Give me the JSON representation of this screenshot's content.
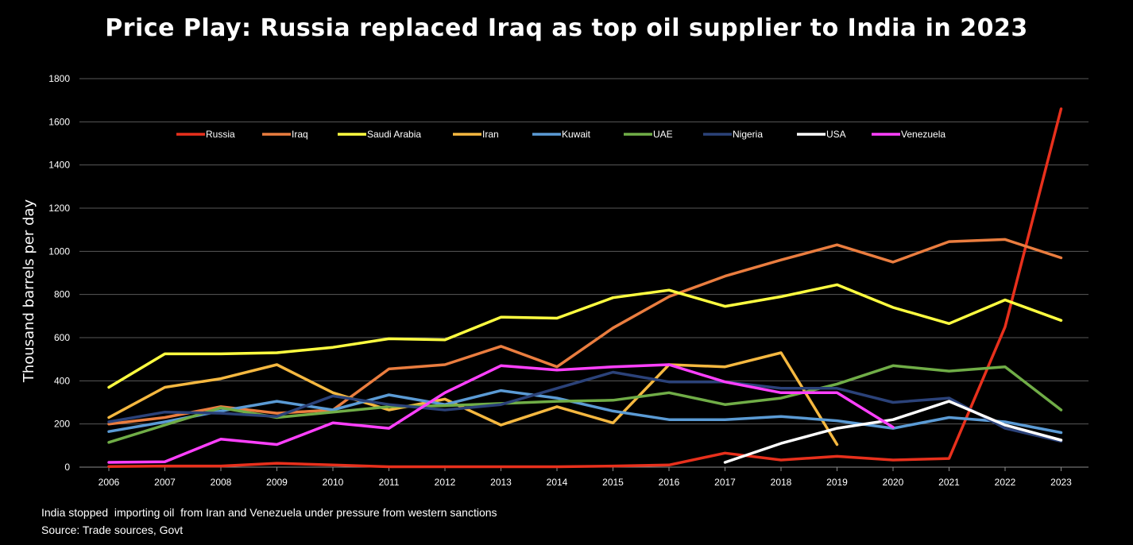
{
  "chart_data": {
    "type": "line",
    "title": "Price Play: Russia replaced Iraq as top oil supplier to India in 2023",
    "xlabel": "",
    "ylabel": "Thousand barrels per day",
    "ylim": [
      0,
      1800
    ],
    "yticks": [
      0,
      200,
      400,
      600,
      800,
      1000,
      1200,
      1400,
      1600,
      1800
    ],
    "grid": true,
    "legend_position": "top",
    "categories": [
      "2006",
      "2007",
      "2008",
      "2009",
      "2010",
      "2011",
      "2012",
      "2013",
      "2014",
      "2015",
      "2016",
      "2017",
      "2018",
      "2019",
      "2020",
      "2021",
      "2022",
      "2023"
    ],
    "series": [
      {
        "name": "Russia",
        "color": "#e8301c",
        "values": [
          3,
          5,
          5,
          18,
          10,
          2,
          2,
          2,
          2,
          5,
          10,
          65,
          33,
          50,
          33,
          40,
          650,
          1660
        ]
      },
      {
        "name": "Iraq",
        "color": "#ea7d3f",
        "values": [
          200,
          230,
          280,
          250,
          265,
          455,
          475,
          560,
          465,
          645,
          790,
          885,
          960,
          1030,
          950,
          1045,
          1055,
          970
        ]
      },
      {
        "name": "Saudi Arabia",
        "color": "#ffff40",
        "values": [
          370,
          525,
          525,
          530,
          555,
          595,
          590,
          695,
          690,
          785,
          820,
          745,
          790,
          845,
          740,
          665,
          775,
          680
        ]
      },
      {
        "name": "Iran",
        "color": "#f5b840",
        "values": [
          230,
          370,
          410,
          475,
          345,
          265,
          315,
          195,
          280,
          205,
          475,
          465,
          530,
          105,
          null,
          null,
          null,
          null
        ]
      },
      {
        "name": "Kuwait",
        "color": "#5b9bd5",
        "values": [
          165,
          210,
          260,
          305,
          265,
          335,
          290,
          355,
          320,
          260,
          220,
          220,
          235,
          215,
          180,
          230,
          210,
          160
        ]
      },
      {
        "name": "UAE",
        "color": "#70ad47",
        "values": [
          115,
          195,
          275,
          230,
          255,
          280,
          285,
          295,
          305,
          310,
          345,
          290,
          320,
          385,
          470,
          445,
          465,
          265
        ]
      },
      {
        "name": "Nigeria",
        "color": "#2b4279",
        "values": [
          210,
          255,
          250,
          235,
          330,
          290,
          265,
          290,
          365,
          440,
          395,
          395,
          365,
          365,
          300,
          320,
          180,
          120
        ]
      },
      {
        "name": "USA",
        "color": "#ffffff",
        "values": [
          null,
          null,
          null,
          null,
          null,
          null,
          null,
          null,
          null,
          null,
          null,
          22,
          110,
          180,
          220,
          305,
          195,
          125
        ]
      },
      {
        "name": "Venezuela",
        "color": "#ff40ff",
        "values": [
          22,
          25,
          130,
          105,
          205,
          180,
          345,
          470,
          450,
          465,
          475,
          395,
          345,
          345,
          185,
          null,
          null,
          null
        ]
      }
    ]
  },
  "footer": {
    "note": "India stopped  importing oil  from Iran and Venezuela under pressure from western sanctions",
    "source": "Source: Trade sources, Govt"
  }
}
